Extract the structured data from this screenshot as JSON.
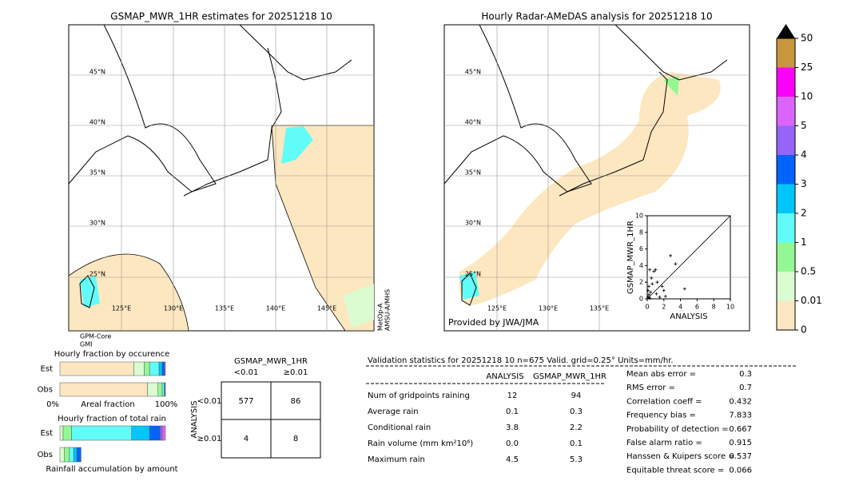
{
  "left_map": {
    "title": "GSMAP_MWR_1HR estimates for 20251218 10",
    "lat_labels": [
      "45°N",
      "40°N",
      "35°N",
      "30°N",
      "25°N"
    ],
    "lon_labels": [
      "125°E",
      "130°E",
      "135°E",
      "140°E",
      "145°E"
    ],
    "sensors_bottom": [
      "GPM-Core",
      "GMI"
    ],
    "sensors_right": [
      "MetOp-A",
      "AMSU-A/MHS"
    ]
  },
  "right_map": {
    "title": "Hourly Radar-AMeDAS analysis for 20251218 10",
    "lat_labels": [
      "45°N",
      "40°N",
      "35°N",
      "30°N",
      "25°N"
    ],
    "lon_labels": [
      "125°E",
      "130°E",
      "135°E"
    ],
    "credit": "Provided by JWA/JMA"
  },
  "chart_data": [
    {
      "type": "colorbar",
      "ticks": [
        0,
        0.01,
        0.5,
        1,
        2,
        3,
        4,
        5,
        10,
        25,
        50
      ],
      "colors": [
        "#fde7c0",
        "#dafcd0",
        "#93f893",
        "#62fcf8",
        "#00c6fc",
        "#0064fc",
        "#9664fc",
        "#dc64fc",
        "#fc00fc",
        "#c8963c"
      ],
      "extend_color": "#000000"
    },
    {
      "type": "scatter",
      "xlabel": "ANALYSIS",
      "ylabel": "GSMAP_MWR_1HR",
      "xlim": [
        0,
        10
      ],
      "ylim": [
        0,
        10
      ],
      "xticks": [
        0,
        2,
        4,
        6,
        8,
        10
      ],
      "yticks": [
        0,
        2,
        4,
        6,
        8,
        10
      ],
      "x": [
        0.1,
        0.2,
        0.3,
        0.5,
        0.8,
        1.0,
        1.5,
        2.0,
        2.8,
        3.4,
        4.5,
        0.2,
        0.1,
        0.3,
        0.6,
        1.2,
        1.8,
        0.4,
        2.2,
        1.1
      ],
      "y": [
        0.2,
        1.5,
        3.5,
        2.5,
        3.3,
        3.5,
        0.2,
        1.0,
        5.2,
        4.2,
        1.2,
        0.5,
        1.0,
        0.1,
        1.8,
        2.0,
        1.5,
        0.8,
        0.3,
        0.6
      ],
      "color": "#000000"
    },
    {
      "type": "stacked_bar",
      "title": "Hourly fraction by occurence",
      "categories": [
        "Est",
        "Obs"
      ],
      "axis_labels": [
        "0%",
        "Areal fraction",
        "100%"
      ],
      "xlim": [
        0,
        100
      ],
      "series": [
        {
          "color": "#fde7c0",
          "values": [
            70,
            83
          ]
        },
        {
          "color": "#dafcd0",
          "values": [
            10,
            10
          ]
        },
        {
          "color": "#93f893",
          "values": [
            5,
            4
          ]
        },
        {
          "color": "#62fcf8",
          "values": [
            9,
            2
          ]
        },
        {
          "color": "#00c6fc",
          "values": [
            3,
            0.5
          ]
        },
        {
          "color": "#0064fc",
          "values": [
            2,
            0.5
          ]
        },
        {
          "color": "#9664fc",
          "values": [
            1,
            0
          ]
        }
      ]
    },
    {
      "type": "stacked_bar",
      "title": "Hourly fraction of total rain",
      "categories": [
        "Est",
        "Obs"
      ],
      "footer": "Rainfall accumulation by amount",
      "xlim": [
        0,
        100
      ],
      "series": [
        {
          "color": "#dafcd0",
          "values": [
            3,
            4
          ]
        },
        {
          "color": "#93f893",
          "values": [
            8,
            5
          ]
        },
        {
          "color": "#62fcf8",
          "values": [
            57,
            4
          ]
        },
        {
          "color": "#00c6fc",
          "values": [
            17,
            3
          ]
        },
        {
          "color": "#0064fc",
          "values": [
            10,
            4
          ]
        },
        {
          "color": "#9664fc",
          "values": [
            2,
            0
          ]
        },
        {
          "color": "#dc64fc",
          "values": [
            3,
            0
          ]
        }
      ]
    }
  ],
  "contingency": {
    "title": "GSMAP_MWR_1HR",
    "columns": [
      "<0.01",
      "≥0.01"
    ],
    "row_axis": "ANALYSIS",
    "rows": [
      "<0.01",
      "≥0.01"
    ],
    "cells": [
      [
        "577",
        "86"
      ],
      [
        "4",
        "8"
      ]
    ]
  },
  "validation": {
    "header": "Validation statistics for 20251218 10  n=675 Valid. grid=0.25° Units=mm/hr.",
    "columns": [
      "ANALYSIS",
      "GSMAP_MWR_1HR"
    ],
    "rows": [
      {
        "label": "Num of gridpoints raining",
        "values": [
          "12",
          "94"
        ]
      },
      {
        "label": "Average rain",
        "values": [
          "0.1",
          "0.3"
        ]
      },
      {
        "label": "Conditional rain",
        "values": [
          "3.8",
          "2.2"
        ]
      },
      {
        "label": "Rain volume (mm km²10⁶)",
        "values": [
          "0.0",
          "0.1"
        ]
      },
      {
        "label": "Maximum rain",
        "values": [
          "4.5",
          "5.3"
        ]
      }
    ],
    "scores": [
      {
        "label": "Mean abs error =",
        "value": "0.3"
      },
      {
        "label": "RMS error =",
        "value": "0.7"
      },
      {
        "label": "Correlation coeff =",
        "value": "0.432"
      },
      {
        "label": "Frequency bias =",
        "value": "7.833"
      },
      {
        "label": "Probability of detection =",
        "value": "0.667"
      },
      {
        "label": "False alarm ratio =",
        "value": "0.915"
      },
      {
        "label": "Hanssen & Kuipers score =",
        "value": "0.537"
      },
      {
        "label": "Equitable threat score =",
        "value": "0.066"
      }
    ]
  }
}
